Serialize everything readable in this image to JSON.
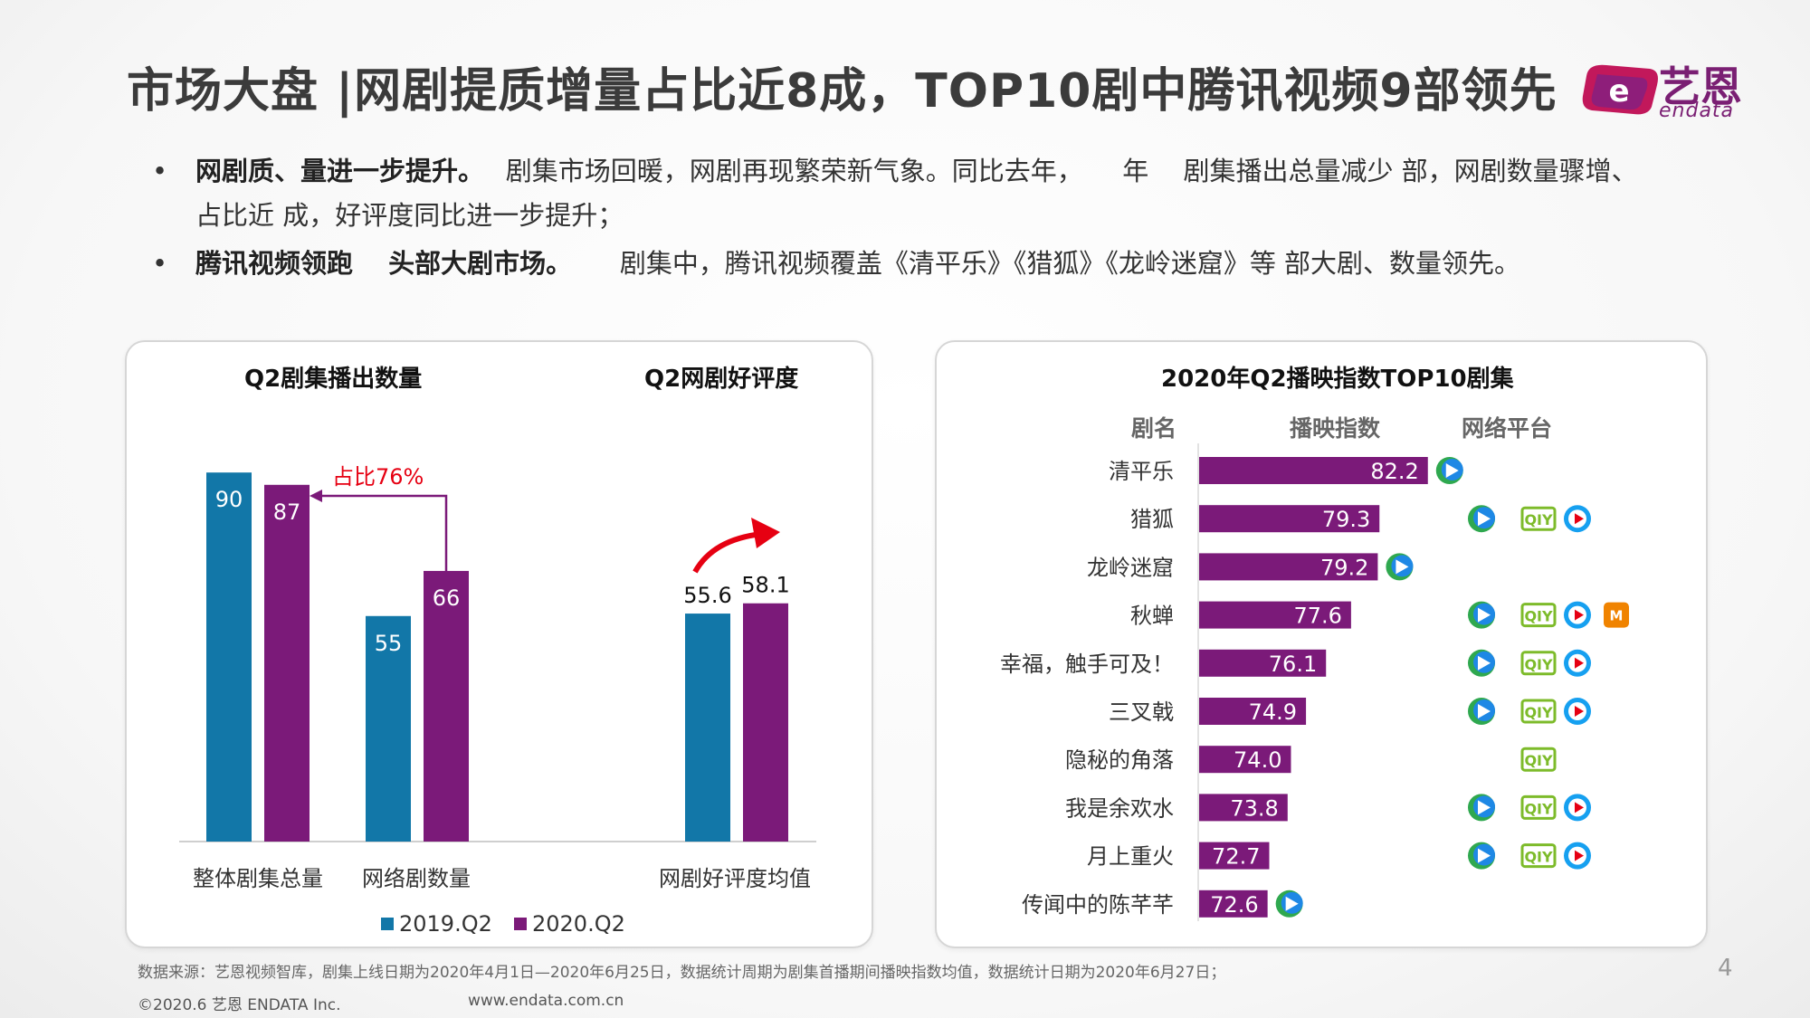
{
  "header": {
    "title": "市场大盘 |网剧提质增量占比近8成，TOP10剧中腾讯视频9部领先",
    "logo_cn": "艺恩",
    "logo_en": "endata"
  },
  "bullets": [
    {
      "bold": "网剧质、量进一步提升。",
      "line1": "剧集市场回暖，网剧再现繁荣新气象。同比去年，　　年　 剧集播出总量减少  部，网剧数量骤增、",
      "line2": "占比近  成，好评度同比进一步提升；"
    },
    {
      "bold": "腾讯视频领跑　 头部大剧市场。",
      "line1": "剧集中，腾讯视频覆盖《清平乐》《猎狐》《龙岭迷窟》等  部大剧、数量领先。"
    }
  ],
  "colors": {
    "blue": "#1277a8",
    "purple": "#7b1a79",
    "red": "#e60012",
    "tencent_green": "#2fa84f",
    "tencent_blue": "#1e88e5",
    "iqiyi_green": "#7dbb2a",
    "youku_blue": "#16a0f0",
    "mgtv_orange": "#f08300"
  },
  "chart_data": [
    {
      "type": "bar",
      "title": "Q2剧集播出数量",
      "categories": [
        "整体剧集总量",
        "网络剧数量"
      ],
      "series": [
        {
          "name": "2019.Q2",
          "values": [
            90,
            55
          ]
        },
        {
          "name": "2020.Q2",
          "values": [
            87,
            66
          ]
        }
      ],
      "annotation": "占比76%",
      "ylim": [
        0,
        100
      ]
    },
    {
      "type": "bar",
      "title": "Q2网剧好评度",
      "categories": [
        "网剧好评度均值"
      ],
      "series": [
        {
          "name": "2019.Q2",
          "values": [
            55.6
          ]
        },
        {
          "name": "2020.Q2",
          "values": [
            58.1
          ]
        }
      ],
      "ylim": [
        0,
        100
      ]
    },
    {
      "type": "bar",
      "orientation": "horizontal",
      "title": "2020年Q2播映指数TOP10剧集",
      "columns": [
        "剧名",
        "播映指数",
        "网络平台"
      ],
      "categories": [
        "清平乐",
        "猎狐",
        "龙岭迷窟",
        "秋蝉",
        "幸福，触手可及！",
        "三叉戟",
        "隐秘的角落",
        "我是余欢水",
        "月上重火",
        "传闻中的陈芊芊"
      ],
      "values": [
        82.2,
        79.3,
        79.2,
        77.6,
        76.1,
        74.9,
        74.0,
        73.8,
        72.7,
        72.6
      ],
      "value_labels": [
        "82.2",
        "79.3",
        "79.2",
        "77.6",
        "76.1",
        "74.9",
        "74.0",
        "73.8",
        "72.7",
        "72.6"
      ],
      "platforms": [
        [
          "tencent"
        ],
        [
          "tencent",
          "iqiyi",
          "youku"
        ],
        [
          "tencent"
        ],
        [
          "tencent",
          "iqiyi",
          "youku",
          "mgtv"
        ],
        [
          "tencent",
          "iqiyi",
          "youku"
        ],
        [
          "tencent",
          "iqiyi",
          "youku"
        ],
        [
          "iqiyi"
        ],
        [
          "tencent",
          "iqiyi",
          "youku"
        ],
        [
          "tencent",
          "iqiyi",
          "youku"
        ],
        [
          "tencent"
        ]
      ],
      "xlim": [
        68,
        84
      ]
    }
  ],
  "legend": [
    "2019.Q2",
    "2020.Q2"
  ],
  "footer": {
    "source": "数据来源：艺恩视频智库，剧集上线日期为2020年4月1日—2020年6月25日，数据统计周期为剧集首播期间播映指数均值，数据统计日期为2020年6月27日；",
    "copyright": "©2020.6 艺恩 ENDATA Inc.",
    "url": "www.endata.com.cn",
    "page": "4"
  }
}
